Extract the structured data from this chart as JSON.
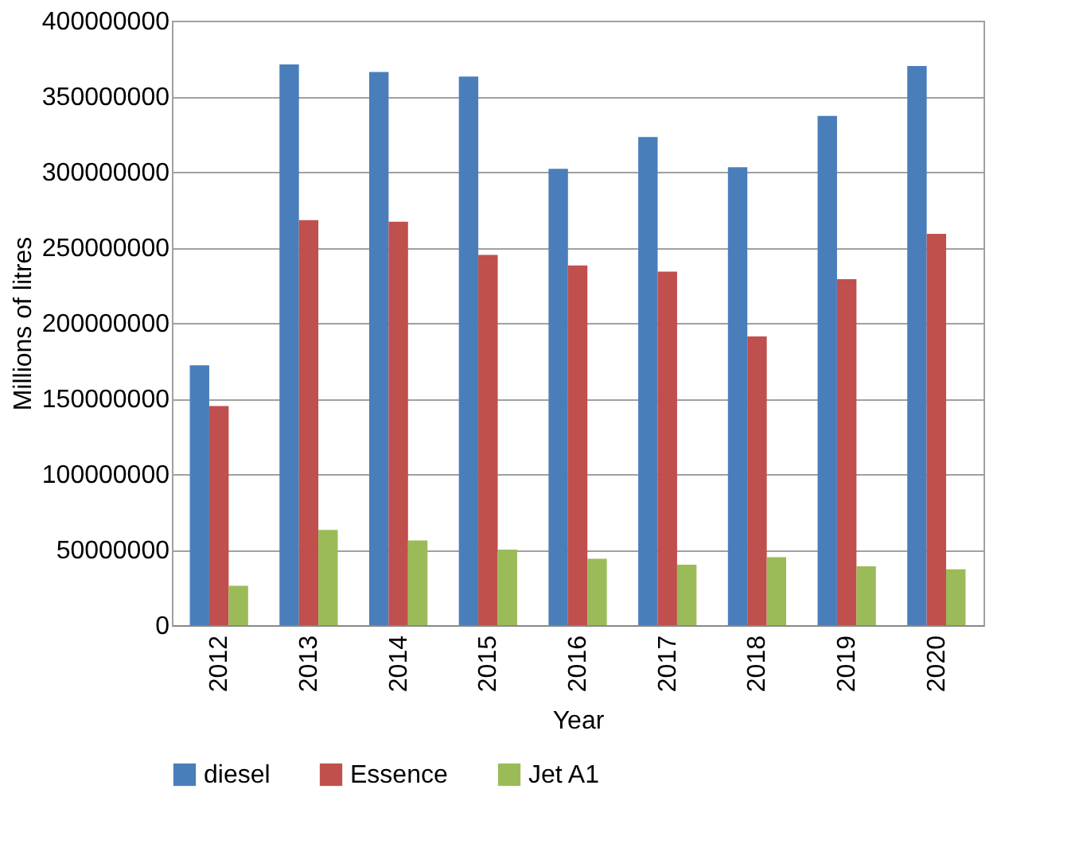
{
  "chart_data": {
    "type": "bar",
    "xlabel": "Year",
    "ylabel": "Millions of litres",
    "categories": [
      "2012",
      "2013",
      "2014",
      "2015",
      "2016",
      "2017",
      "2018",
      "2019",
      "2020"
    ],
    "series": [
      {
        "name": "diesel",
        "color": "#4a7ebb",
        "values": [
          172000000,
          371000000,
          366000000,
          363000000,
          302000000,
          323000000,
          303000000,
          337000000,
          370000000
        ]
      },
      {
        "name": "Essence",
        "color": "#c0504d",
        "values": [
          145000000,
          268000000,
          267000000,
          245000000,
          238000000,
          234000000,
          191000000,
          229000000,
          259000000
        ]
      },
      {
        "name": "Jet A1",
        "color": "#9bbb59",
        "values": [
          26000000,
          63000000,
          56000000,
          50000000,
          44000000,
          40000000,
          45000000,
          39000000,
          37000000
        ]
      }
    ],
    "ylim": [
      0,
      400000000
    ],
    "yticks": [
      0,
      50000000,
      100000000,
      150000000,
      200000000,
      250000000,
      300000000,
      350000000,
      400000000
    ],
    "grid": "y",
    "legend": "bottom"
  }
}
